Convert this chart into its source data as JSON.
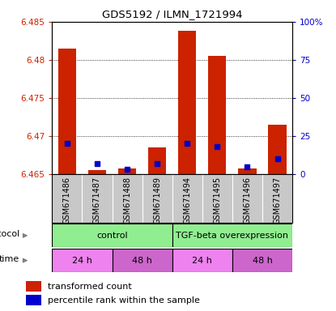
{
  "title": "GDS5192 / ILMN_1721994",
  "samples": [
    "GSM671486",
    "GSM671487",
    "GSM671488",
    "GSM671489",
    "GSM671494",
    "GSM671495",
    "GSM671496",
    "GSM671497"
  ],
  "red_values": [
    6.4815,
    6.4655,
    6.4658,
    6.4685,
    6.4838,
    6.4805,
    6.4658,
    6.4715
  ],
  "blue_values_pct": [
    20,
    7,
    3,
    7,
    20,
    18,
    5,
    10
  ],
  "ylim": [
    6.465,
    6.485
  ],
  "yticks": [
    6.465,
    6.47,
    6.475,
    6.48,
    6.485
  ],
  "right_yticks": [
    0,
    25,
    50,
    75,
    100
  ],
  "right_ytick_labels": [
    "0",
    "25",
    "50",
    "75",
    "100%"
  ],
  "bar_color": "#CC2200",
  "dot_color": "#0000CC",
  "base": 6.465,
  "left_axis_color": "#CC2200",
  "right_axis_color": "#0000CC",
  "gray_bg": "#C8C8C8",
  "proto_color": "#90EE90",
  "time_color1": "#EE82EE",
  "time_color2": "#CC66CC",
  "protocol_labels": [
    "control",
    "TGF-beta overexpression"
  ],
  "time_labels": [
    "24 h",
    "48 h",
    "24 h",
    "48 h"
  ]
}
